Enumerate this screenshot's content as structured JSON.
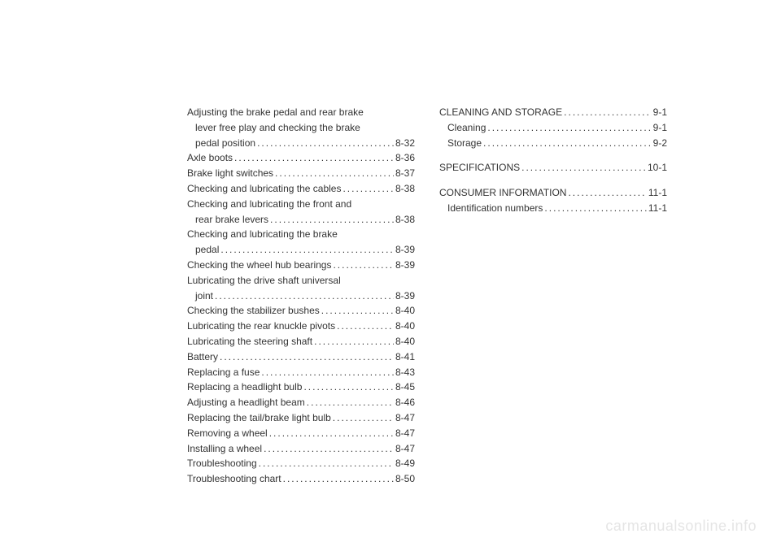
{
  "left_column": [
    {
      "type": "multi",
      "lines": [
        "Adjusting the brake pedal and rear brake",
        "lever free play and checking the brake"
      ],
      "last": "pedal position",
      "page": "8-32",
      "indent": true
    },
    {
      "type": "single",
      "label": "Axle boots",
      "page": "8-36"
    },
    {
      "type": "single",
      "label": "Brake light switches",
      "page": "8-37"
    },
    {
      "type": "single",
      "label": "Checking and lubricating the cables",
      "page": "8-38"
    },
    {
      "type": "multi",
      "lines": [
        "Checking and lubricating the front and"
      ],
      "last": "rear brake levers",
      "page": "8-38",
      "indent": true
    },
    {
      "type": "multi",
      "lines": [
        "Checking and lubricating the brake"
      ],
      "last": "pedal",
      "page": "8-39",
      "indent": true
    },
    {
      "type": "single",
      "label": "Checking the wheel hub bearings",
      "page": "8-39"
    },
    {
      "type": "multi",
      "lines": [
        "Lubricating the drive shaft universal"
      ],
      "last": "joint",
      "page": "8-39",
      "indent": true
    },
    {
      "type": "single",
      "label": "Checking the stabilizer bushes",
      "page": "8-40"
    },
    {
      "type": "single",
      "label": "Lubricating the rear knuckle pivots",
      "page": "8-40"
    },
    {
      "type": "single",
      "label": "Lubricating the steering shaft",
      "page": "8-40"
    },
    {
      "type": "single",
      "label": "Battery",
      "page": "8-41"
    },
    {
      "type": "single",
      "label": "Replacing a fuse",
      "page": "8-43"
    },
    {
      "type": "single",
      "label": "Replacing a headlight bulb",
      "page": "8-45"
    },
    {
      "type": "single",
      "label": "Adjusting a headlight beam",
      "page": "8-46"
    },
    {
      "type": "single",
      "label": "Replacing the tail/brake light bulb",
      "page": "8-47"
    },
    {
      "type": "single",
      "label": "Removing a wheel",
      "page": "8-47"
    },
    {
      "type": "single",
      "label": "Installing a wheel",
      "page": "8-47"
    },
    {
      "type": "single",
      "label": "Troubleshooting",
      "page": "8-49"
    },
    {
      "type": "single",
      "label": "Troubleshooting chart",
      "page": "8-50"
    }
  ],
  "right_column": [
    {
      "type": "single",
      "label": "CLEANING AND STORAGE",
      "page": "9-1",
      "gap": false
    },
    {
      "type": "single",
      "label": "Cleaning",
      "page": "9-1",
      "indent": true
    },
    {
      "type": "single",
      "label": "Storage",
      "page": "9-2",
      "indent": true
    },
    {
      "type": "single",
      "label": "SPECIFICATIONS",
      "page": "10-1",
      "gap": true
    },
    {
      "type": "single",
      "label": "CONSUMER INFORMATION",
      "page": "11-1",
      "gap": true
    },
    {
      "type": "single",
      "label": "Identification numbers",
      "page": "11-1",
      "indent": true
    }
  ],
  "watermark": "carmanualsonline.info",
  "colors": {
    "background": "#ffffff",
    "text": "#333333",
    "watermark": "#e5e5e5"
  },
  "typography": {
    "body_fontsize": 12,
    "watermark_fontsize": 18,
    "font_family": "Arial, Helvetica, sans-serif"
  }
}
